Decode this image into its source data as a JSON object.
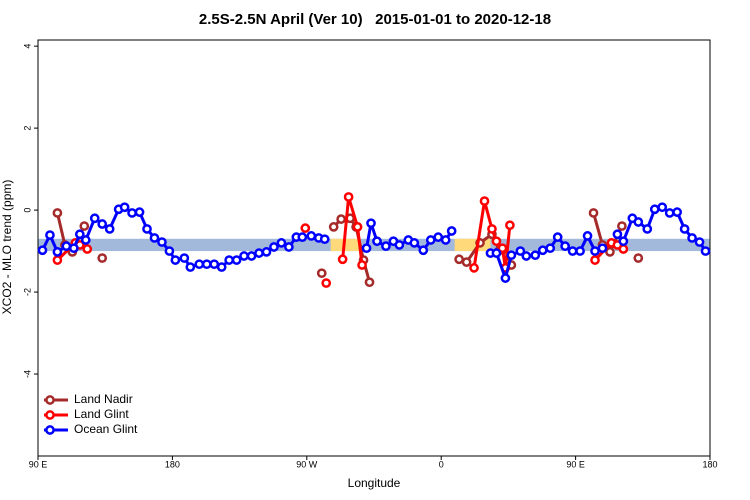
{
  "chart_data": {
    "type": "line",
    "title": "2.5S-2.5N April (Ver 10)   2015-01-01 to 2020-12-18",
    "x_label": "Longitude",
    "y_label": "XCO2 - MLO trend (ppm)",
    "xlim": [
      90,
      540
    ],
    "ylim": [
      -6.0,
      4.15
    ],
    "xticks": [
      {
        "value": 90,
        "label": "90 E"
      },
      180,
      {
        "value": 270,
        "label": "90 W"
      },
      {
        "value": 360,
        "label": "0"
      },
      {
        "value": 450,
        "label": "90 E"
      },
      {
        "value": 540,
        "label": "180"
      }
    ],
    "yticks": [
      -4,
      -2,
      0,
      2,
      4
    ],
    "legend": "bottom-left",
    "band": {
      "ylim": [
        -1.0,
        -0.7
      ],
      "color": "#a3b9dc"
    },
    "highlights": {
      "color": "#ffd97a",
      "xranges": [
        [
          286,
          306
        ],
        [
          369,
          393
        ]
      ]
    },
    "series": [
      {
        "name": "Land Nadir",
        "color": "#a52a2a",
        "x": [
          103,
          108,
          113,
          121,
          null,
          133,
          null,
          280,
          null,
          288,
          293,
          299,
          303,
          308,
          312,
          null,
          372,
          377,
          386,
          394,
          399,
          404,
          407,
          null,
          462,
          468,
          473,
          481,
          null,
          492
        ],
        "values": [
          -0.07,
          -0.85,
          -1.02,
          -0.39,
          null,
          -1.17,
          null,
          -1.54,
          null,
          -0.41,
          -0.22,
          -0.2,
          -0.41,
          -1.22,
          -1.76,
          null,
          -1.2,
          -1.27,
          -0.8,
          -0.59,
          -0.98,
          -1.1,
          -1.34,
          null,
          -0.07,
          -0.85,
          -1.02,
          -0.39,
          null,
          -1.17
        ]
      },
      {
        "name": "Land Glint",
        "color": "#ff0000",
        "x": [
          103,
          115,
          118,
          123,
          null,
          269,
          null,
          283,
          null,
          294,
          298,
          304,
          307,
          null,
          382,
          389,
          394,
          397,
          401,
          403,
          406,
          null,
          463,
          474,
          478,
          482
        ],
        "values": [
          -1.22,
          -0.8,
          -0.85,
          -0.95,
          null,
          -0.44,
          null,
          -1.78,
          null,
          -1.2,
          0.32,
          -0.41,
          -1.34,
          null,
          -1.41,
          0.22,
          -0.46,
          -0.76,
          -0.93,
          -1.41,
          -0.37,
          null,
          -1.22,
          -0.8,
          -0.85,
          -0.95
        ]
      },
      {
        "name": "Ocean Glint",
        "color": "#0000ff",
        "x": [
          93,
          98,
          103,
          109,
          114,
          118,
          122,
          128,
          133,
          138,
          144,
          148,
          153,
          158,
          163,
          168,
          173,
          178,
          182,
          188,
          192,
          198,
          203,
          208,
          213,
          218,
          223,
          228,
          233,
          238,
          243,
          248,
          253,
          258,
          263,
          267,
          273,
          278,
          282,
          null,
          310,
          313,
          317,
          323,
          328,
          332,
          338,
          342,
          348,
          353,
          358,
          363,
          367,
          null,
          393,
          397,
          403,
          407,
          413,
          417,
          423,
          428,
          433,
          438,
          443,
          448,
          453,
          458,
          463,
          468,
          null,
          478,
          482,
          488,
          492,
          498,
          503,
          508,
          513,
          518,
          523,
          528,
          533,
          537
        ],
        "values": [
          -0.98,
          -0.61,
          -1.02,
          -0.88,
          -0.93,
          -0.59,
          -0.73,
          -0.2,
          -0.34,
          -0.46,
          0.02,
          0.07,
          -0.07,
          -0.05,
          -0.46,
          -0.68,
          -0.78,
          -1.0,
          -1.22,
          -1.17,
          -1.39,
          -1.32,
          -1.32,
          -1.32,
          -1.39,
          -1.22,
          -1.22,
          -1.12,
          -1.12,
          -1.05,
          -1.02,
          -0.9,
          -0.8,
          -0.9,
          -0.66,
          -0.66,
          -0.63,
          -0.68,
          -0.71,
          null,
          -0.93,
          -0.32,
          -0.76,
          -0.88,
          -0.76,
          -0.85,
          -0.73,
          -0.8,
          -0.98,
          -0.73,
          -0.66,
          -0.73,
          -0.51,
          null,
          -1.05,
          -1.05,
          -1.66,
          -1.1,
          -1.0,
          -1.12,
          -1.1,
          -0.98,
          -0.93,
          -0.66,
          -0.88,
          -1.0,
          -1.0,
          -0.63,
          -1.0,
          -0.93,
          null,
          -0.59,
          -0.76,
          -0.2,
          -0.29,
          -0.46,
          0.02,
          0.07,
          -0.07,
          -0.05,
          -0.46,
          -0.68,
          -0.78,
          -1.0
        ]
      }
    ]
  }
}
